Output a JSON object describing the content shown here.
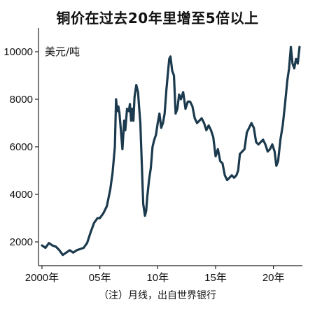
{
  "chart_data": {
    "type": "line",
    "title": "铜价在过去20年里增至5倍以上",
    "ylabel": "美元/吨",
    "xlabel": "",
    "note": "（注）月线，出自世界银行",
    "x_tick_labels": [
      "2000年",
      "05年",
      "10年",
      "15年",
      "20年"
    ],
    "x_tick_years": [
      2000,
      2005,
      2010,
      2015,
      2020
    ],
    "y_ticks": [
      2000,
      4000,
      6000,
      8000,
      10000
    ],
    "xlim": [
      1999.7,
      2022.5
    ],
    "ylim": [
      1000,
      11000
    ],
    "grid": false,
    "line_color": "#1b3a4d",
    "series": [
      {
        "name": "",
        "x": [
          2000.0,
          2000.3,
          2000.6,
          2000.9,
          2001.2,
          2001.5,
          2001.8,
          2002.1,
          2002.4,
          2002.7,
          2003.0,
          2003.3,
          2003.6,
          2003.9,
          2004.2,
          2004.5,
          2004.8,
          2005.0,
          2005.3,
          2005.6,
          2005.9,
          2006.1,
          2006.3,
          2006.4,
          2006.5,
          2006.6,
          2006.7,
          2006.8,
          2006.95,
          2007.1,
          2007.2,
          2007.35,
          2007.5,
          2007.6,
          2007.7,
          2007.8,
          2007.9,
          2008.0,
          2008.15,
          2008.3,
          2008.4,
          2008.5,
          2008.6,
          2008.75,
          2008.9,
          2009.0,
          2009.1,
          2009.25,
          2009.4,
          2009.55,
          2009.7,
          2009.85,
          2010.0,
          2010.15,
          2010.3,
          2010.45,
          2010.6,
          2010.75,
          2010.9,
          2011.0,
          2011.1,
          2011.25,
          2011.4,
          2011.55,
          2011.7,
          2011.85,
          2012.0,
          2012.2,
          2012.4,
          2012.6,
          2012.8,
          2013.0,
          2013.2,
          2013.4,
          2013.6,
          2013.8,
          2014.0,
          2014.2,
          2014.4,
          2014.6,
          2014.8,
          2015.0,
          2015.2,
          2015.4,
          2015.6,
          2015.8,
          2016.0,
          2016.2,
          2016.4,
          2016.6,
          2016.8,
          2016.95,
          2017.1,
          2017.3,
          2017.5,
          2017.7,
          2017.9,
          2018.1,
          2018.3,
          2018.5,
          2018.7,
          2018.9,
          2019.1,
          2019.3,
          2019.5,
          2019.7,
          2019.9,
          2020.1,
          2020.25,
          2020.4,
          2020.6,
          2020.8,
          2021.0,
          2021.2,
          2021.35,
          2021.5,
          2021.65,
          2021.8,
          2021.95,
          2022.1,
          2022.25
        ],
        "values": [
          1850,
          1750,
          1950,
          1850,
          1800,
          1650,
          1450,
          1550,
          1650,
          1550,
          1650,
          1700,
          1750,
          1950,
          2400,
          2800,
          3000,
          3000,
          3200,
          3500,
          4200,
          4900,
          6000,
          8000,
          7500,
          7700,
          7400,
          6800,
          5900,
          7100,
          6700,
          7600,
          7500,
          7800,
          7100,
          7600,
          7100,
          8100,
          8600,
          8300,
          7600,
          7000,
          5600,
          3600,
          3100,
          3300,
          3900,
          4600,
          5100,
          6000,
          6300,
          6500,
          7000,
          7400,
          6800,
          7000,
          7400,
          8400,
          9200,
          9700,
          9800,
          9200,
          9000,
          7400,
          7600,
          8200,
          8000,
          8300,
          7600,
          7900,
          7900,
          7700,
          7200,
          7000,
          7100,
          7200,
          7000,
          6700,
          6900,
          6700,
          6400,
          5600,
          5900,
          5400,
          5300,
          4800,
          4600,
          4700,
          4800,
          4700,
          4800,
          5000,
          5700,
          5800,
          5900,
          6600,
          6800,
          7000,
          6800,
          6200,
          6100,
          6200,
          6300,
          6100,
          5800,
          5900,
          6100,
          5800,
          5200,
          5400,
          6300,
          6900,
          7800,
          8800,
          9300,
          10200,
          9500,
          9300,
          9700,
          9500,
          10200
        ]
      }
    ]
  }
}
